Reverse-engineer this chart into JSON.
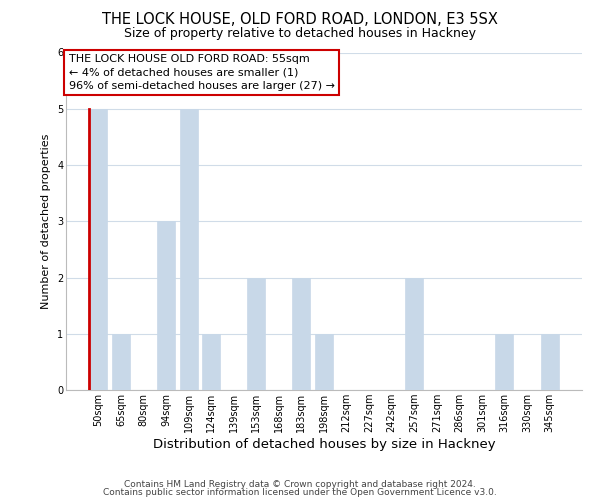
{
  "title": "THE LOCK HOUSE, OLD FORD ROAD, LONDON, E3 5SX",
  "subtitle": "Size of property relative to detached houses in Hackney",
  "xlabel": "Distribution of detached houses by size in Hackney",
  "ylabel": "Number of detached properties",
  "bar_labels": [
    "50sqm",
    "65sqm",
    "80sqm",
    "94sqm",
    "109sqm",
    "124sqm",
    "139sqm",
    "153sqm",
    "168sqm",
    "183sqm",
    "198sqm",
    "212sqm",
    "227sqm",
    "242sqm",
    "257sqm",
    "271sqm",
    "286sqm",
    "301sqm",
    "316sqm",
    "330sqm",
    "345sqm"
  ],
  "bar_values": [
    5,
    1,
    0,
    3,
    5,
    1,
    0,
    2,
    0,
    2,
    1,
    0,
    0,
    0,
    2,
    0,
    0,
    0,
    1,
    0,
    1
  ],
  "bar_color": "#c8d8e8",
  "highlight_bar_index": 0,
  "highlight_bar_edge_color": "#cc0000",
  "highlight_bar_edge_width": 2.0,
  "ylim": [
    0,
    6
  ],
  "yticks": [
    0,
    1,
    2,
    3,
    4,
    5,
    6
  ],
  "annotation_line1": "THE LOCK HOUSE OLD FORD ROAD: 55sqm",
  "annotation_line2": "← 4% of detached houses are smaller (1)",
  "annotation_line3": "96% of semi-detached houses are larger (27) →",
  "footer_line1": "Contains HM Land Registry data © Crown copyright and database right 2024.",
  "footer_line2": "Contains public sector information licensed under the Open Government Licence v3.0.",
  "bg_color": "#ffffff",
  "grid_color": "#d0dce8",
  "title_fontsize": 10.5,
  "subtitle_fontsize": 9,
  "xlabel_fontsize": 9.5,
  "ylabel_fontsize": 8,
  "tick_fontsize": 7,
  "annotation_fontsize": 8,
  "footer_fontsize": 6.5
}
